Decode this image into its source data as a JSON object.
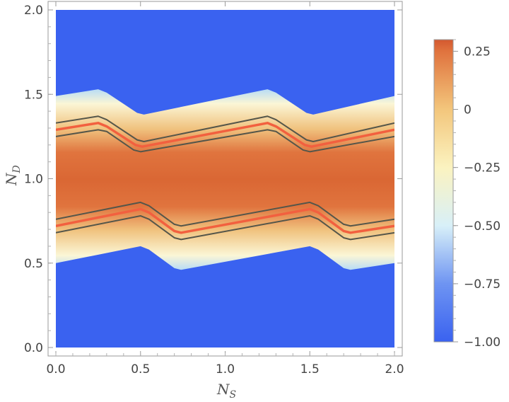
{
  "chart_data": {
    "type": "heatmap",
    "title": "",
    "xlabel": "N",
    "xlabel_sub": "S",
    "ylabel": "N",
    "ylabel_sub": "D",
    "xlim": [
      0.0,
      2.0
    ],
    "ylim": [
      0.0,
      2.0
    ],
    "x_ticks": [
      {
        "value": 0.0,
        "label": "0.0"
      },
      {
        "value": 0.5,
        "label": "0.5"
      },
      {
        "value": 1.0,
        "label": "1.0"
      },
      {
        "value": 1.5,
        "label": "1.5"
      },
      {
        "value": 2.0,
        "label": "2.0"
      }
    ],
    "y_ticks": [
      {
        "value": 0.0,
        "label": "0.0"
      },
      {
        "value": 0.5,
        "label": "0.5"
      },
      {
        "value": 1.0,
        "label": "1.0"
      },
      {
        "value": 1.5,
        "label": "1.5"
      },
      {
        "value": 2.0,
        "label": "2.0"
      }
    ],
    "colorbar": {
      "range": [
        -1.0,
        0.3
      ],
      "ticks": [
        {
          "value": 0.25,
          "label": "0.25"
        },
        {
          "value": 0.0,
          "label": "0"
        },
        {
          "value": -0.25,
          "label": "−0.25"
        },
        {
          "value": -0.5,
          "label": "−0.50"
        },
        {
          "value": -0.75,
          "label": "−0.75"
        },
        {
          "value": -1.0,
          "label": "−1.00"
        }
      ],
      "color_stops": [
        {
          "value": -1.0,
          "color": "#3a62f0"
        },
        {
          "value": -0.75,
          "color": "#6e94f2"
        },
        {
          "value": -0.5,
          "color": "#d8f0f8"
        },
        {
          "value": -0.25,
          "color": "#fbf3c0"
        },
        {
          "value": 0.0,
          "color": "#f3c67c"
        },
        {
          "value": 0.25,
          "color": "#e0733e"
        },
        {
          "value": 0.3,
          "color": "#d3582f"
        }
      ]
    },
    "colors": {
      "frame": "#9a9a9a",
      "contour_outer": "#55564a",
      "contour_center": "#f2603f"
    },
    "contour_lines": [
      {
        "name": "upper-outer-top",
        "style": "outer",
        "points": [
          [
            0.0,
            1.33
          ],
          [
            0.25,
            1.37
          ],
          [
            0.3,
            1.35
          ],
          [
            0.48,
            1.23
          ],
          [
            0.52,
            1.22
          ],
          [
            1.25,
            1.37
          ],
          [
            1.3,
            1.35
          ],
          [
            1.48,
            1.23
          ],
          [
            1.52,
            1.22
          ],
          [
            2.0,
            1.33
          ]
        ]
      },
      {
        "name": "upper-center",
        "style": "center",
        "points": [
          [
            0.0,
            1.29
          ],
          [
            0.25,
            1.33
          ],
          [
            0.3,
            1.31
          ],
          [
            0.47,
            1.2
          ],
          [
            0.51,
            1.19
          ],
          [
            1.25,
            1.33
          ],
          [
            1.3,
            1.31
          ],
          [
            1.47,
            1.2
          ],
          [
            1.51,
            1.19
          ],
          [
            2.0,
            1.29
          ]
        ]
      },
      {
        "name": "upper-outer-bottom",
        "style": "outer",
        "points": [
          [
            0.0,
            1.25
          ],
          [
            0.25,
            1.29
          ],
          [
            0.3,
            1.28
          ],
          [
            0.46,
            1.17
          ],
          [
            0.5,
            1.16
          ],
          [
            1.25,
            1.29
          ],
          [
            1.3,
            1.28
          ],
          [
            1.46,
            1.17
          ],
          [
            1.5,
            1.16
          ],
          [
            2.0,
            1.25
          ]
        ]
      },
      {
        "name": "lower-outer-top",
        "style": "outer",
        "points": [
          [
            0.0,
            0.76
          ],
          [
            0.5,
            0.86
          ],
          [
            0.55,
            0.84
          ],
          [
            0.7,
            0.73
          ],
          [
            0.74,
            0.72
          ],
          [
            1.5,
            0.86
          ],
          [
            1.55,
            0.84
          ],
          [
            1.7,
            0.73
          ],
          [
            1.74,
            0.72
          ],
          [
            2.0,
            0.76
          ]
        ]
      },
      {
        "name": "lower-center",
        "style": "center",
        "points": [
          [
            0.0,
            0.72
          ],
          [
            0.5,
            0.82
          ],
          [
            0.55,
            0.8
          ],
          [
            0.7,
            0.69
          ],
          [
            0.74,
            0.68
          ],
          [
            1.5,
            0.82
          ],
          [
            1.55,
            0.8
          ],
          [
            1.7,
            0.69
          ],
          [
            1.74,
            0.68
          ],
          [
            2.0,
            0.72
          ]
        ]
      },
      {
        "name": "lower-outer-bottom",
        "style": "outer",
        "points": [
          [
            0.0,
            0.68
          ],
          [
            0.5,
            0.78
          ],
          [
            0.55,
            0.76
          ],
          [
            0.7,
            0.65
          ],
          [
            0.74,
            0.64
          ],
          [
            1.5,
            0.78
          ],
          [
            1.55,
            0.76
          ],
          [
            1.7,
            0.65
          ],
          [
            1.74,
            0.64
          ],
          [
            2.0,
            0.68
          ]
        ]
      }
    ],
    "grid": false,
    "legend": "colorbar-right"
  }
}
